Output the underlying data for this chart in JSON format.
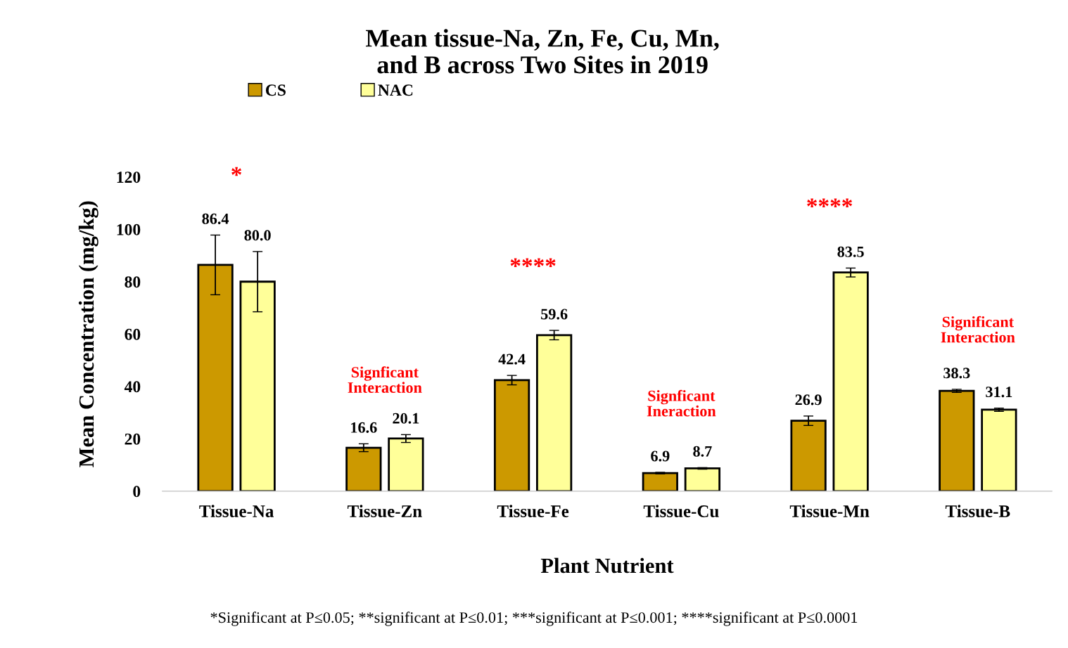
{
  "chart_data": {
    "type": "bar",
    "title": "Mean tissue-Na, Zn, Fe, Cu, Mn,\nand B across Two Sites in 2019",
    "xlabel": "Plant Nutrient",
    "ylabel": "Mean Concentration (mg/kg)",
    "categories": [
      "Tissue-Na",
      "Tissue-Zn",
      "Tissue-Fe",
      "Tissue-Cu",
      "Tissue-Mn",
      "Tissue-B"
    ],
    "series": [
      {
        "name": "CS",
        "color": "#cc9900",
        "values": [
          86.4,
          16.6,
          42.4,
          6.9,
          26.9,
          38.3
        ],
        "errors": [
          11.4,
          1.5,
          1.8,
          0.3,
          1.8,
          0.6
        ],
        "value_labels": [
          "86.4",
          "16.6",
          "42.4",
          "6.9",
          "26.9",
          "38.3"
        ]
      },
      {
        "name": "NAC",
        "color": "#ffff99",
        "values": [
          80.0,
          20.1,
          59.6,
          8.7,
          83.5,
          31.1
        ],
        "errors": [
          11.5,
          1.5,
          1.8,
          0.3,
          1.7,
          0.6
        ],
        "value_labels": [
          "80.0",
          "20.1",
          "59.6",
          "8.7",
          "83.5",
          "31.1"
        ]
      }
    ],
    "ylim": [
      0,
      120
    ],
    "yticks": [
      0,
      20,
      40,
      60,
      80,
      100,
      120
    ],
    "grid": false,
    "legend": "top left",
    "annotations": [
      "*",
      "Signficant\nInteraction",
      "****",
      "Signficant\nIneraction",
      "****",
      "Significant\nInteraction",
      "*Significant at P≤0.05; **significant at P≤0.01; ***significant at P≤0.001; ****significant at P≤0.0001"
    ]
  }
}
